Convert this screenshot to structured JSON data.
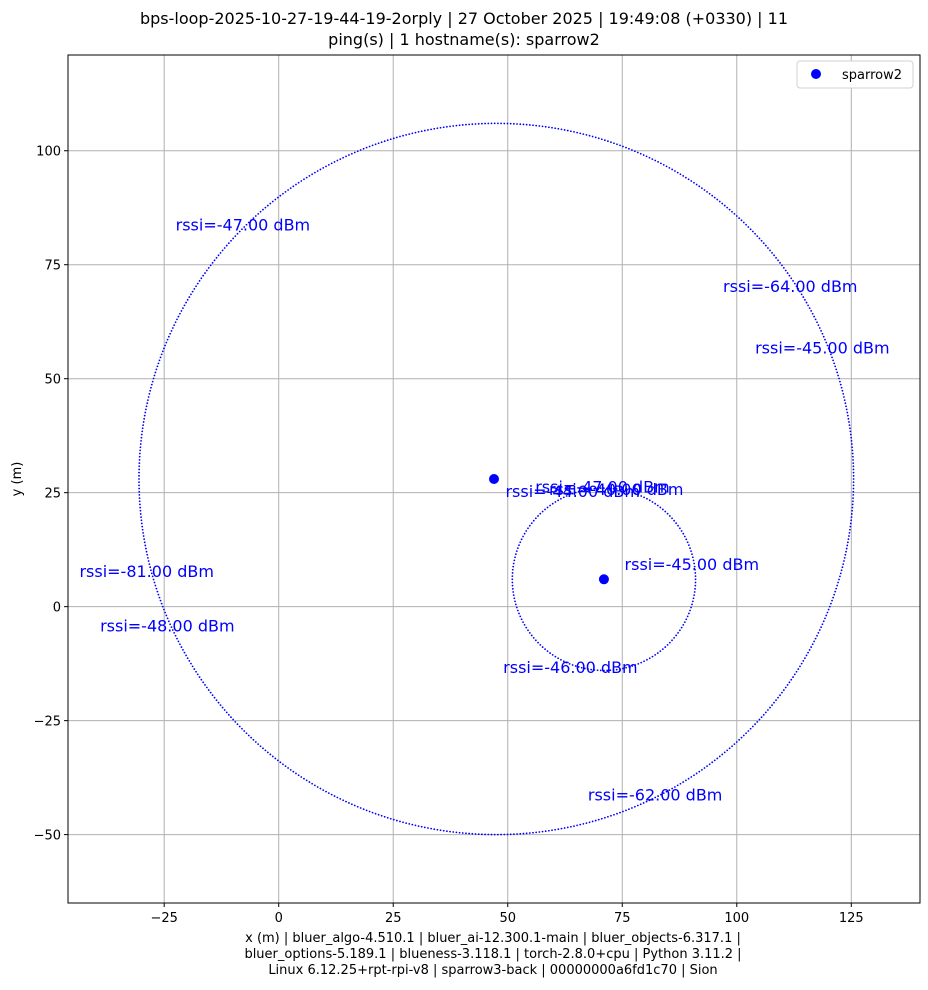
{
  "chart_data": {
    "type": "scatter",
    "title_line1": "bps-loop-2025-10-27-19-44-19-2orply | 27 October 2025 | 19:49:08 (+0330) | 11",
    "title_line2": "ping(s) | 1 hostname(s): sparrow2",
    "xlabel_line1": "x (m) | bluer_algo-4.510.1 | bluer_ai-12.300.1-main | bluer_objects-6.317.1 |",
    "xlabel_line2": "bluer_options-5.189.1 | blueness-3.118.1 | torch-2.8.0+cpu | Python 3.11.2 |",
    "xlabel_line3": "Linux 6.12.25+rpt-rpi-v8 | sparrow3-back | 00000000a6fd1c70 | Sion",
    "ylabel": "y (m)",
    "xlim": [
      -46,
      140
    ],
    "ylim": [
      -65,
      121
    ],
    "xticks": [
      -25,
      0,
      25,
      50,
      75,
      100,
      125
    ],
    "yticks": [
      -50,
      -25,
      0,
      25,
      50,
      75,
      100
    ],
    "grid": true,
    "legend_position": "top-right",
    "series": [
      {
        "name": "sparrow2",
        "color": "#0000ff",
        "points": [
          [
            47,
            28
          ],
          [
            71,
            6
          ]
        ]
      }
    ],
    "circles": [
      {
        "cx": 47.5,
        "cy": 28,
        "r": 78,
        "color": "#0000ff"
      },
      {
        "cx": 71,
        "cy": 6,
        "r": 20,
        "color": "#0000ff"
      }
    ],
    "annotations": [
      {
        "text": "rssi=-47.00 dBm",
        "x": -22.5,
        "y": 82.5
      },
      {
        "text": "rssi=-64.00 dBm",
        "x": 97,
        "y": 69
      },
      {
        "text": "rssi=-45.00 dBm",
        "x": 104,
        "y": 55.5
      },
      {
        "text": "rssi=-47.00 dBm",
        "x": 56,
        "y": 25
      },
      {
        "text": "rssi=-40.00 dBm",
        "x": 59,
        "y": 24.5
      },
      {
        "text": "rssi=-44.00 dBm",
        "x": 49.5,
        "y": 24
      },
      {
        "text": "rssi=-45.00 dBm",
        "x": 75.5,
        "y": 8
      },
      {
        "text": "rssi=-81.00 dBm",
        "x": -43.5,
        "y": 6.5
      },
      {
        "text": "rssi=-48.00 dBm",
        "x": -39,
        "y": -5.5
      },
      {
        "text": "rssi=-46.00 dBm",
        "x": 49,
        "y": -14.5
      },
      {
        "text": "rssi=-62.00 dBm",
        "x": 67.5,
        "y": -42.5
      }
    ]
  }
}
